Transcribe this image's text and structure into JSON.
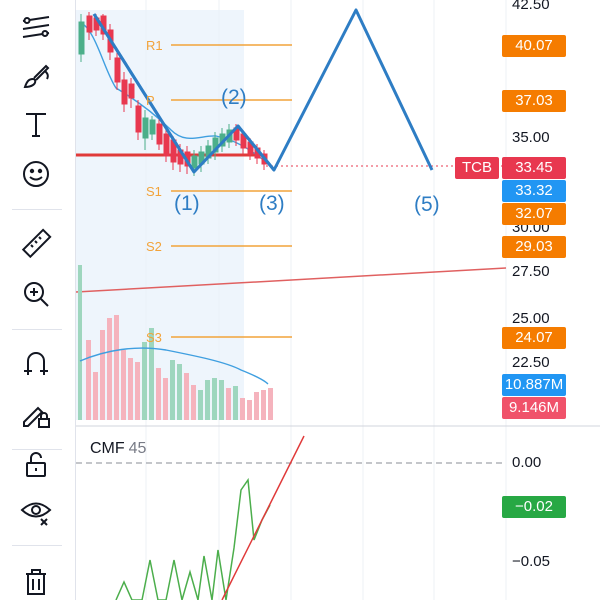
{
  "toolbar": {
    "tools": [
      {
        "icon": "trend-lines-icon"
      },
      {
        "icon": "brush-icon"
      },
      {
        "icon": "text-icon",
        "glyph": "T"
      },
      {
        "icon": "emoji-icon"
      },
      {
        "icon": "ruler-icon"
      },
      {
        "icon": "zoom-in-icon"
      },
      {
        "icon": "magnet-icon"
      },
      {
        "icon": "lock-drawing-icon"
      },
      {
        "icon": "unlock-icon"
      },
      {
        "icon": "eye-icon"
      },
      {
        "icon": "trash-icon"
      }
    ]
  },
  "price_axis": {
    "ticks": [
      "42.50",
      "35.00",
      "30.00",
      "27.50",
      "25.00",
      "22.50"
    ],
    "labels": [
      {
        "text": "40.07",
        "color": "#f57c00"
      },
      {
        "text": "37.03",
        "color": "#f57c00"
      },
      {
        "text": "33.45",
        "color": "#e8384f"
      },
      {
        "text": "33.32",
        "color": "#2196f3"
      },
      {
        "text": "32.07",
        "color": "#f57c00"
      },
      {
        "text": "29.03",
        "color": "#f57c00"
      },
      {
        "text": "24.07",
        "color": "#f57c00"
      },
      {
        "text": "10.887M",
        "color": "#2196f3"
      },
      {
        "text": "9.146M",
        "color": "#f0526a"
      }
    ],
    "symbol_tag": "TCB"
  },
  "pivot_levels": [
    "R1",
    "P",
    "S1",
    "S2",
    "S3"
  ],
  "wave_labels": [
    "(1)",
    "(2)",
    "(3)",
    "(5)"
  ],
  "cmf": {
    "title": "CMF",
    "period": "45",
    "ticks": [
      "0.00",
      "−0.05"
    ],
    "value_label": "−0.02",
    "value_color": "#27a844"
  },
  "colors": {
    "up": "#4caf8a",
    "down": "#e8384f",
    "pivot": "#f2a33a",
    "wave": "#2e7dc4",
    "ma": "#3f9fe0"
  }
}
